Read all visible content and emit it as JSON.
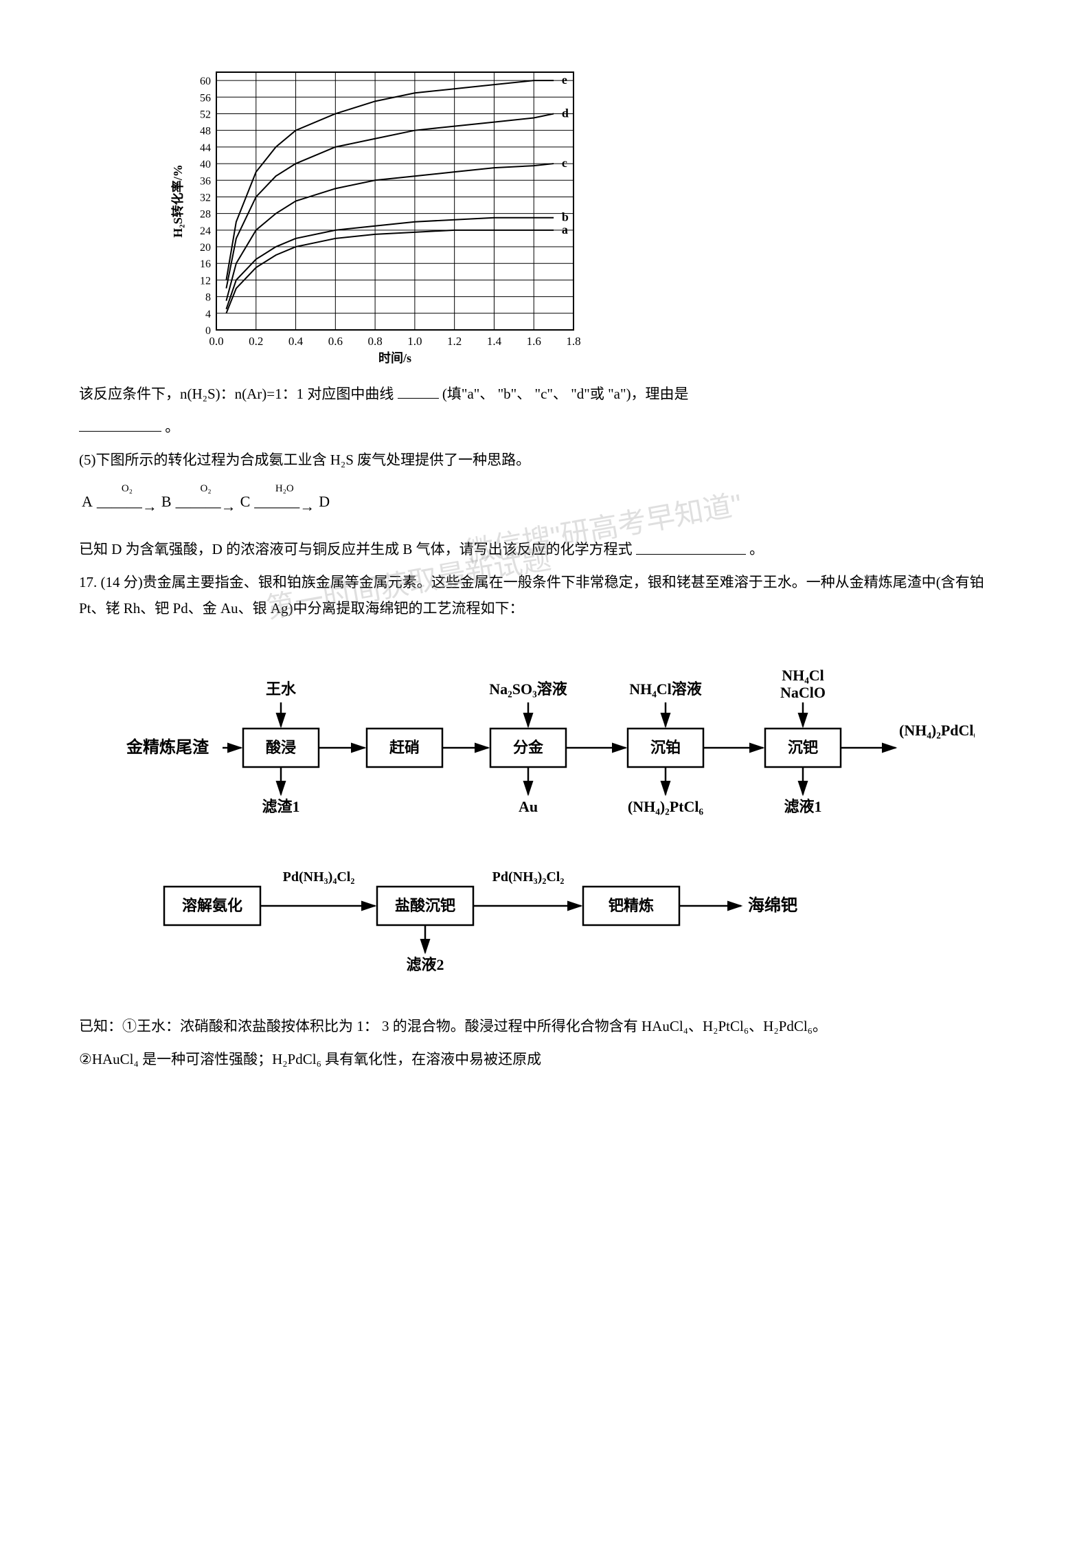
{
  "chart": {
    "type": "line",
    "xlabel": "时间/s",
    "ylabel": "H₂S转化率/%",
    "label_fontsize": 18,
    "xlim": [
      0.0,
      1.8
    ],
    "ylim": [
      0,
      62
    ],
    "xtick_step": 0.2,
    "yticks": [
      0,
      4,
      8,
      12,
      16,
      20,
      24,
      28,
      32,
      36,
      40,
      44,
      48,
      52,
      56,
      60
    ],
    "background_color": "#ffffff",
    "grid_color": "#000000",
    "line_color": "#000000",
    "line_width": 2,
    "series": [
      {
        "name": "a",
        "label_x": 1.72,
        "label_y": 24,
        "points": [
          [
            0.05,
            4
          ],
          [
            0.1,
            10
          ],
          [
            0.2,
            15
          ],
          [
            0.3,
            18
          ],
          [
            0.4,
            20
          ],
          [
            0.6,
            22
          ],
          [
            0.8,
            23
          ],
          [
            1.0,
            23.5
          ],
          [
            1.2,
            24
          ],
          [
            1.4,
            24
          ],
          [
            1.6,
            24
          ],
          [
            1.7,
            24
          ]
        ]
      },
      {
        "name": "b",
        "label_x": 1.72,
        "label_y": 27,
        "points": [
          [
            0.05,
            5
          ],
          [
            0.1,
            12
          ],
          [
            0.2,
            17
          ],
          [
            0.3,
            20
          ],
          [
            0.4,
            22
          ],
          [
            0.6,
            24
          ],
          [
            0.8,
            25
          ],
          [
            1.0,
            26
          ],
          [
            1.2,
            26.5
          ],
          [
            1.4,
            27
          ],
          [
            1.6,
            27
          ],
          [
            1.7,
            27
          ]
        ]
      },
      {
        "name": "c",
        "label_x": 1.72,
        "label_y": 40,
        "points": [
          [
            0.05,
            7
          ],
          [
            0.1,
            16
          ],
          [
            0.2,
            24
          ],
          [
            0.3,
            28
          ],
          [
            0.4,
            31
          ],
          [
            0.6,
            34
          ],
          [
            0.8,
            36
          ],
          [
            1.0,
            37
          ],
          [
            1.2,
            38
          ],
          [
            1.4,
            39
          ],
          [
            1.6,
            39.5
          ],
          [
            1.7,
            40
          ]
        ]
      },
      {
        "name": "d",
        "label_x": 1.72,
        "label_y": 52,
        "points": [
          [
            0.05,
            10
          ],
          [
            0.1,
            22
          ],
          [
            0.2,
            32
          ],
          [
            0.3,
            37
          ],
          [
            0.4,
            40
          ],
          [
            0.6,
            44
          ],
          [
            0.8,
            46
          ],
          [
            1.0,
            48
          ],
          [
            1.2,
            49
          ],
          [
            1.4,
            50
          ],
          [
            1.6,
            51
          ],
          [
            1.7,
            52
          ]
        ]
      },
      {
        "name": "e",
        "label_x": 1.72,
        "label_y": 60,
        "points": [
          [
            0.05,
            12
          ],
          [
            0.1,
            26
          ],
          [
            0.2,
            38
          ],
          [
            0.3,
            44
          ],
          [
            0.4,
            48
          ],
          [
            0.6,
            52
          ],
          [
            0.8,
            55
          ],
          [
            1.0,
            57
          ],
          [
            1.2,
            58
          ],
          [
            1.4,
            59
          ],
          [
            1.6,
            60
          ],
          [
            1.7,
            60
          ]
        ]
      }
    ]
  },
  "q4_text1": "该反应条件下，n(H₂S)：n(Ar)=1：1 对应图中曲线",
  "q4_text2": "(填\"a\"、 \"b\"、 \"c\"、 \"d\"或 \"a\")，理由是",
  "q4_text3": "。",
  "q5_intro": "(5)下图所示的转化过程为合成氨工业含 H₂S 废气处理提供了一种思路。",
  "reaction_chain": {
    "species": [
      "A",
      "B",
      "C",
      "D"
    ],
    "labels": [
      "O₂",
      "O₂",
      "H₂O"
    ]
  },
  "q5_text2": "已知 D 为含氧强酸，D 的浓溶液可与铜反应并生成 B 气体，请写出该反应的化学方程式",
  "q5_text3": "。",
  "q17_text": "17. (14 分)贵金属主要指金、银和铂族金属等金属元素。这些金属在一般条件下非常稳定，银和铑甚至难溶于王水。一种从金精炼尾渣中(含有铂 Pt、铑 Rh、钯 Pd、金 Au、银 Ag)中分离提取海绵钯的工艺流程如下：",
  "watermark1": "微信搜\"研高考早知道\"",
  "watermark2": "第一时间获取最新试题",
  "flow": {
    "row1": {
      "input": "金精炼尾渣",
      "boxes": [
        "酸浸",
        "赶硝",
        "分金",
        "沉铂",
        "沉钯"
      ],
      "top_inputs": {
        "酸浸": "王水",
        "分金": "Na₂SO₃溶液",
        "沉铂": "NH₄Cl溶液",
        "沉钯": "NH₄Cl\nNaClO"
      },
      "bottom_outputs": {
        "酸浸": "滤渣1",
        "分金": "Au",
        "沉铂": "(NH₄)₂PtCl₆",
        "沉钯": "滤液1"
      },
      "final_output": "(NH₄)₂PdCl₆"
    },
    "row2": {
      "boxes": [
        "溶解氨化",
        "盐酸沉钯",
        "钯精炼"
      ],
      "arrow_labels": {
        "1": "Pd(NH₃)₄Cl₂",
        "2": "Pd(NH₃)₂Cl₂"
      },
      "final_output": "海绵钯",
      "bottom_outputs": {
        "盐酸沉钯": "滤液2"
      }
    },
    "box_stroke": "#000000",
    "box_fill": "#ffffff",
    "text_fontsize": 22,
    "label_fontsize": 20
  },
  "known1": "已知：①王水：浓硝酸和浓盐酸按体积比为 1： 3 的混合物。酸浸过程中所得化合物含有 HAuCl₄、H₂PtCl₆、H₂PdCl₆。",
  "known2": "②HAuCl₄ 是一种可溶性强酸；H₂PdCl₆ 具有氧化性，在溶液中易被还原成"
}
